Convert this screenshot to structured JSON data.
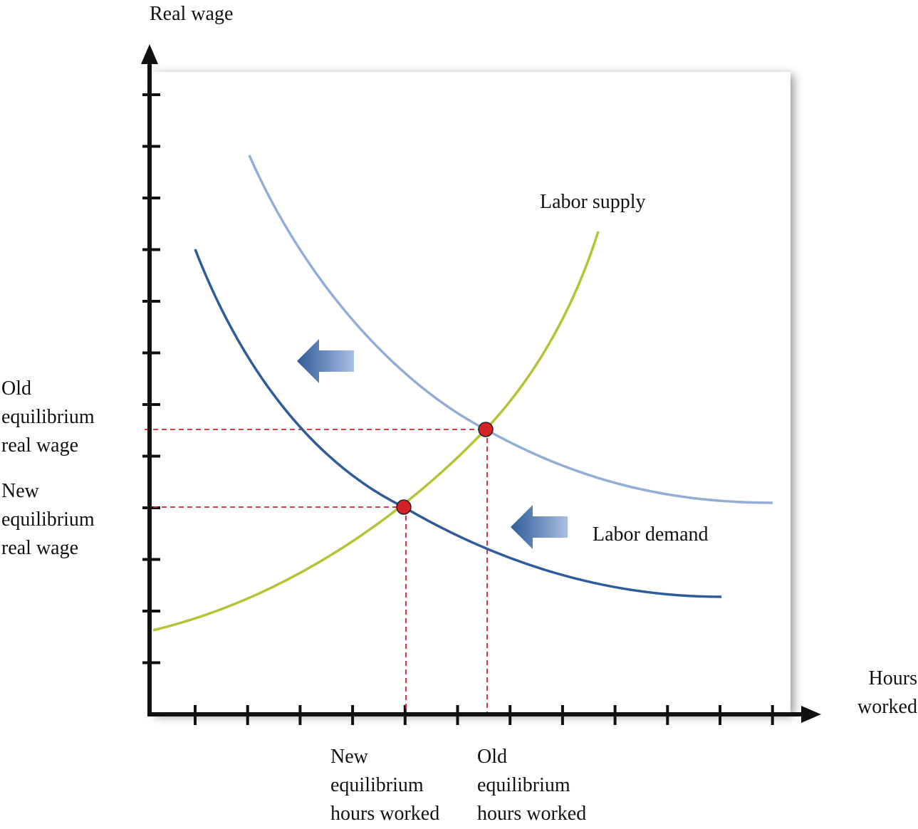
{
  "axes": {
    "y_label": "Real wage",
    "x_label": "Hours\nworked"
  },
  "curves": {
    "supply_label": "Labor supply",
    "demand_label": "Labor demand"
  },
  "annotations": {
    "old_wage": "Old\nequilibrium\nreal wage",
    "new_wage": "New\nequilibrium\nreal wage",
    "new_hours": "New\nequilibrium\nhours worked",
    "old_hours": "Old\nequilibrium\nhours worked"
  },
  "colors": {
    "supply": "#b5c334",
    "old_demand": "#93add6",
    "new_demand": "#2f5b9a",
    "equilibrium": "#d42027",
    "guides": "#d42027"
  }
}
